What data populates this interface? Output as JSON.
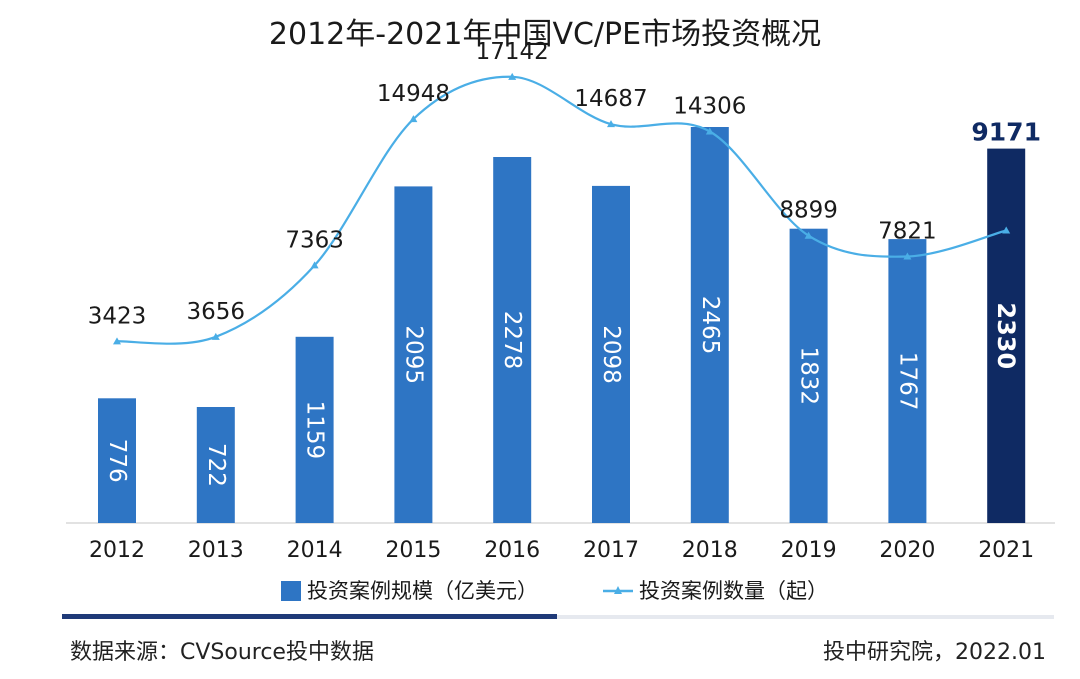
{
  "chart_data": {
    "type": "bar+line",
    "title": "2012年-2021年中国VC/PE市场投资概况",
    "categories": [
      "2012",
      "2013",
      "2014",
      "2015",
      "2016",
      "2017",
      "2018",
      "2019",
      "2020",
      "2021"
    ],
    "series": [
      {
        "name": "投资案例规模（亿美元）",
        "kind": "bar",
        "values": [
          776,
          722,
          1159,
          2095,
          2278,
          2098,
          2465,
          1832,
          1767,
          2330
        ]
      },
      {
        "name": "投资案例数量（起）",
        "kind": "line",
        "values": [
          3423,
          3656,
          7363,
          14948,
          17142,
          14687,
          14306,
          8899,
          7821,
          9171
        ]
      }
    ],
    "bar_ylim": [
      0,
      3000
    ],
    "line_ylim": [
      -6000,
      19000
    ],
    "highlight_category": "2021",
    "colors": {
      "bar": "#2e75c4",
      "bar_highlight": "#0f2a63",
      "line": "#4aaee6",
      "highlight_label": "#0f2a63",
      "progress_dark": "#1f3a78",
      "progress_light": "#e6e9ef"
    },
    "legend_position": "bottom"
  },
  "footer": {
    "source": "数据来源：CVSource投中数据",
    "credit": "投中研究院，2022.01"
  }
}
